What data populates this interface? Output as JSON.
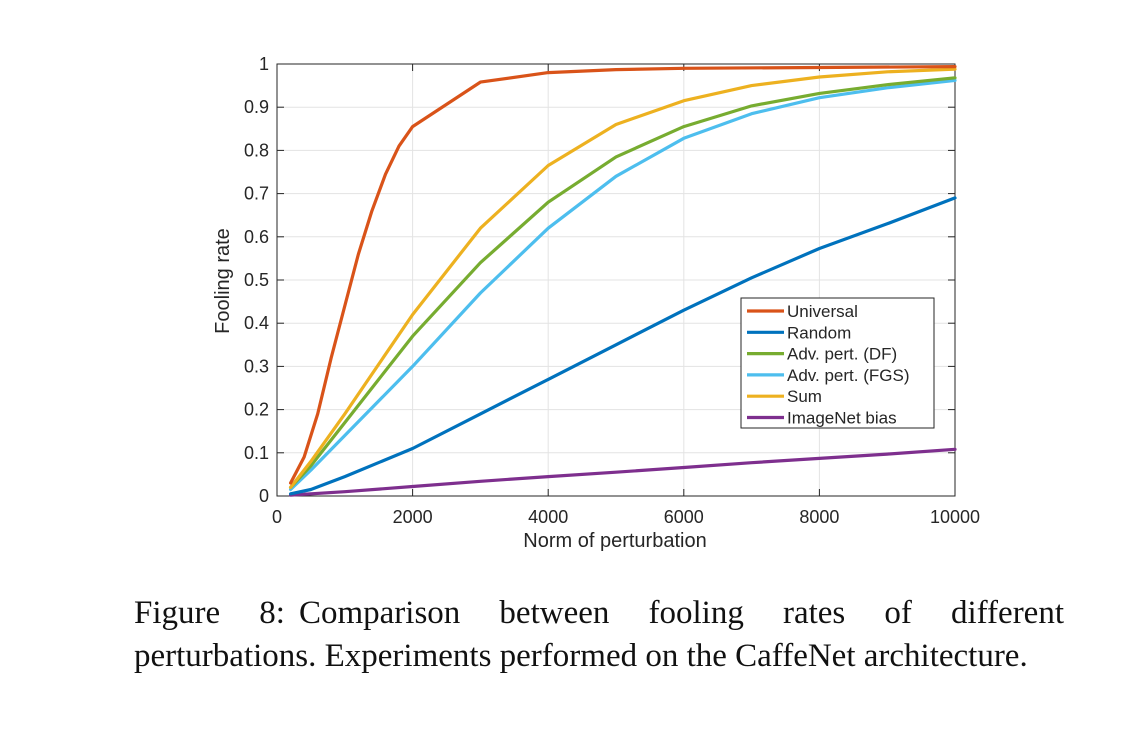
{
  "figure": {
    "label": "Figure 8:",
    "caption": "Comparison between fooling rates of different perturbations. Experiments performed on the CaffeNet architecture."
  },
  "chart_data": {
    "type": "line",
    "xlabel": "Norm of perturbation",
    "ylabel": "Fooling rate",
    "xlim": [
      0,
      10000
    ],
    "ylim": [
      0,
      1
    ],
    "xticks": [
      0,
      2000,
      4000,
      6000,
      8000,
      10000
    ],
    "yticks": [
      0,
      0.1,
      0.2,
      0.3,
      0.4,
      0.5,
      0.6,
      0.7,
      0.8,
      0.9,
      1
    ],
    "xtick_labels": [
      "0",
      "2000",
      "4000",
      "6000",
      "8000",
      "10000"
    ],
    "ytick_labels": [
      "0",
      "0.1",
      "0.2",
      "0.3",
      "0.4",
      "0.5",
      "0.6",
      "0.7",
      "0.8",
      "0.9",
      "1"
    ],
    "grid": true,
    "legend_position": "center-right",
    "series": [
      {
        "name": "Universal",
        "color": "#D95319",
        "x": [
          200,
          400,
          600,
          800,
          1000,
          1200,
          1400,
          1600,
          1800,
          2000,
          3000,
          4000,
          5000,
          6000,
          8000,
          10000
        ],
        "y": [
          0.03,
          0.09,
          0.19,
          0.32,
          0.44,
          0.56,
          0.66,
          0.745,
          0.81,
          0.855,
          0.958,
          0.98,
          0.987,
          0.99,
          0.992,
          0.994
        ]
      },
      {
        "name": "Random",
        "color": "#0072BD",
        "x": [
          200,
          500,
          1000,
          2000,
          3000,
          4000,
          5000,
          6000,
          7000,
          8000,
          9000,
          10000
        ],
        "y": [
          0.005,
          0.015,
          0.045,
          0.11,
          0.19,
          0.27,
          0.35,
          0.43,
          0.505,
          0.573,
          0.63,
          0.69
        ]
      },
      {
        "name": "Adv. pert. (DF)",
        "color": "#77AC30",
        "x": [
          200,
          500,
          1000,
          2000,
          3000,
          4000,
          5000,
          6000,
          7000,
          8000,
          9000,
          10000
        ],
        "y": [
          0.02,
          0.07,
          0.17,
          0.37,
          0.54,
          0.68,
          0.785,
          0.855,
          0.903,
          0.932,
          0.952,
          0.968
        ]
      },
      {
        "name": "Adv. pert. (FGS)",
        "color": "#4DBEEE",
        "x": [
          200,
          500,
          1000,
          2000,
          3000,
          4000,
          5000,
          6000,
          7000,
          8000,
          9000,
          10000
        ],
        "y": [
          0.015,
          0.06,
          0.14,
          0.3,
          0.47,
          0.62,
          0.74,
          0.828,
          0.885,
          0.922,
          0.945,
          0.962
        ]
      },
      {
        "name": "Sum",
        "color": "#EDB120",
        "x": [
          200,
          500,
          1000,
          2000,
          3000,
          4000,
          5000,
          6000,
          7000,
          8000,
          9000,
          10000
        ],
        "y": [
          0.02,
          0.08,
          0.19,
          0.42,
          0.62,
          0.765,
          0.86,
          0.915,
          0.95,
          0.97,
          0.982,
          0.988
        ]
      },
      {
        "name": "ImageNet bias",
        "color": "#7E2F8E",
        "x": [
          200,
          1000,
          2000,
          3000,
          4000,
          5000,
          6000,
          7000,
          8000,
          9000,
          10000
        ],
        "y": [
          0.002,
          0.01,
          0.022,
          0.034,
          0.045,
          0.055,
          0.066,
          0.077,
          0.087,
          0.097,
          0.108
        ]
      }
    ]
  }
}
